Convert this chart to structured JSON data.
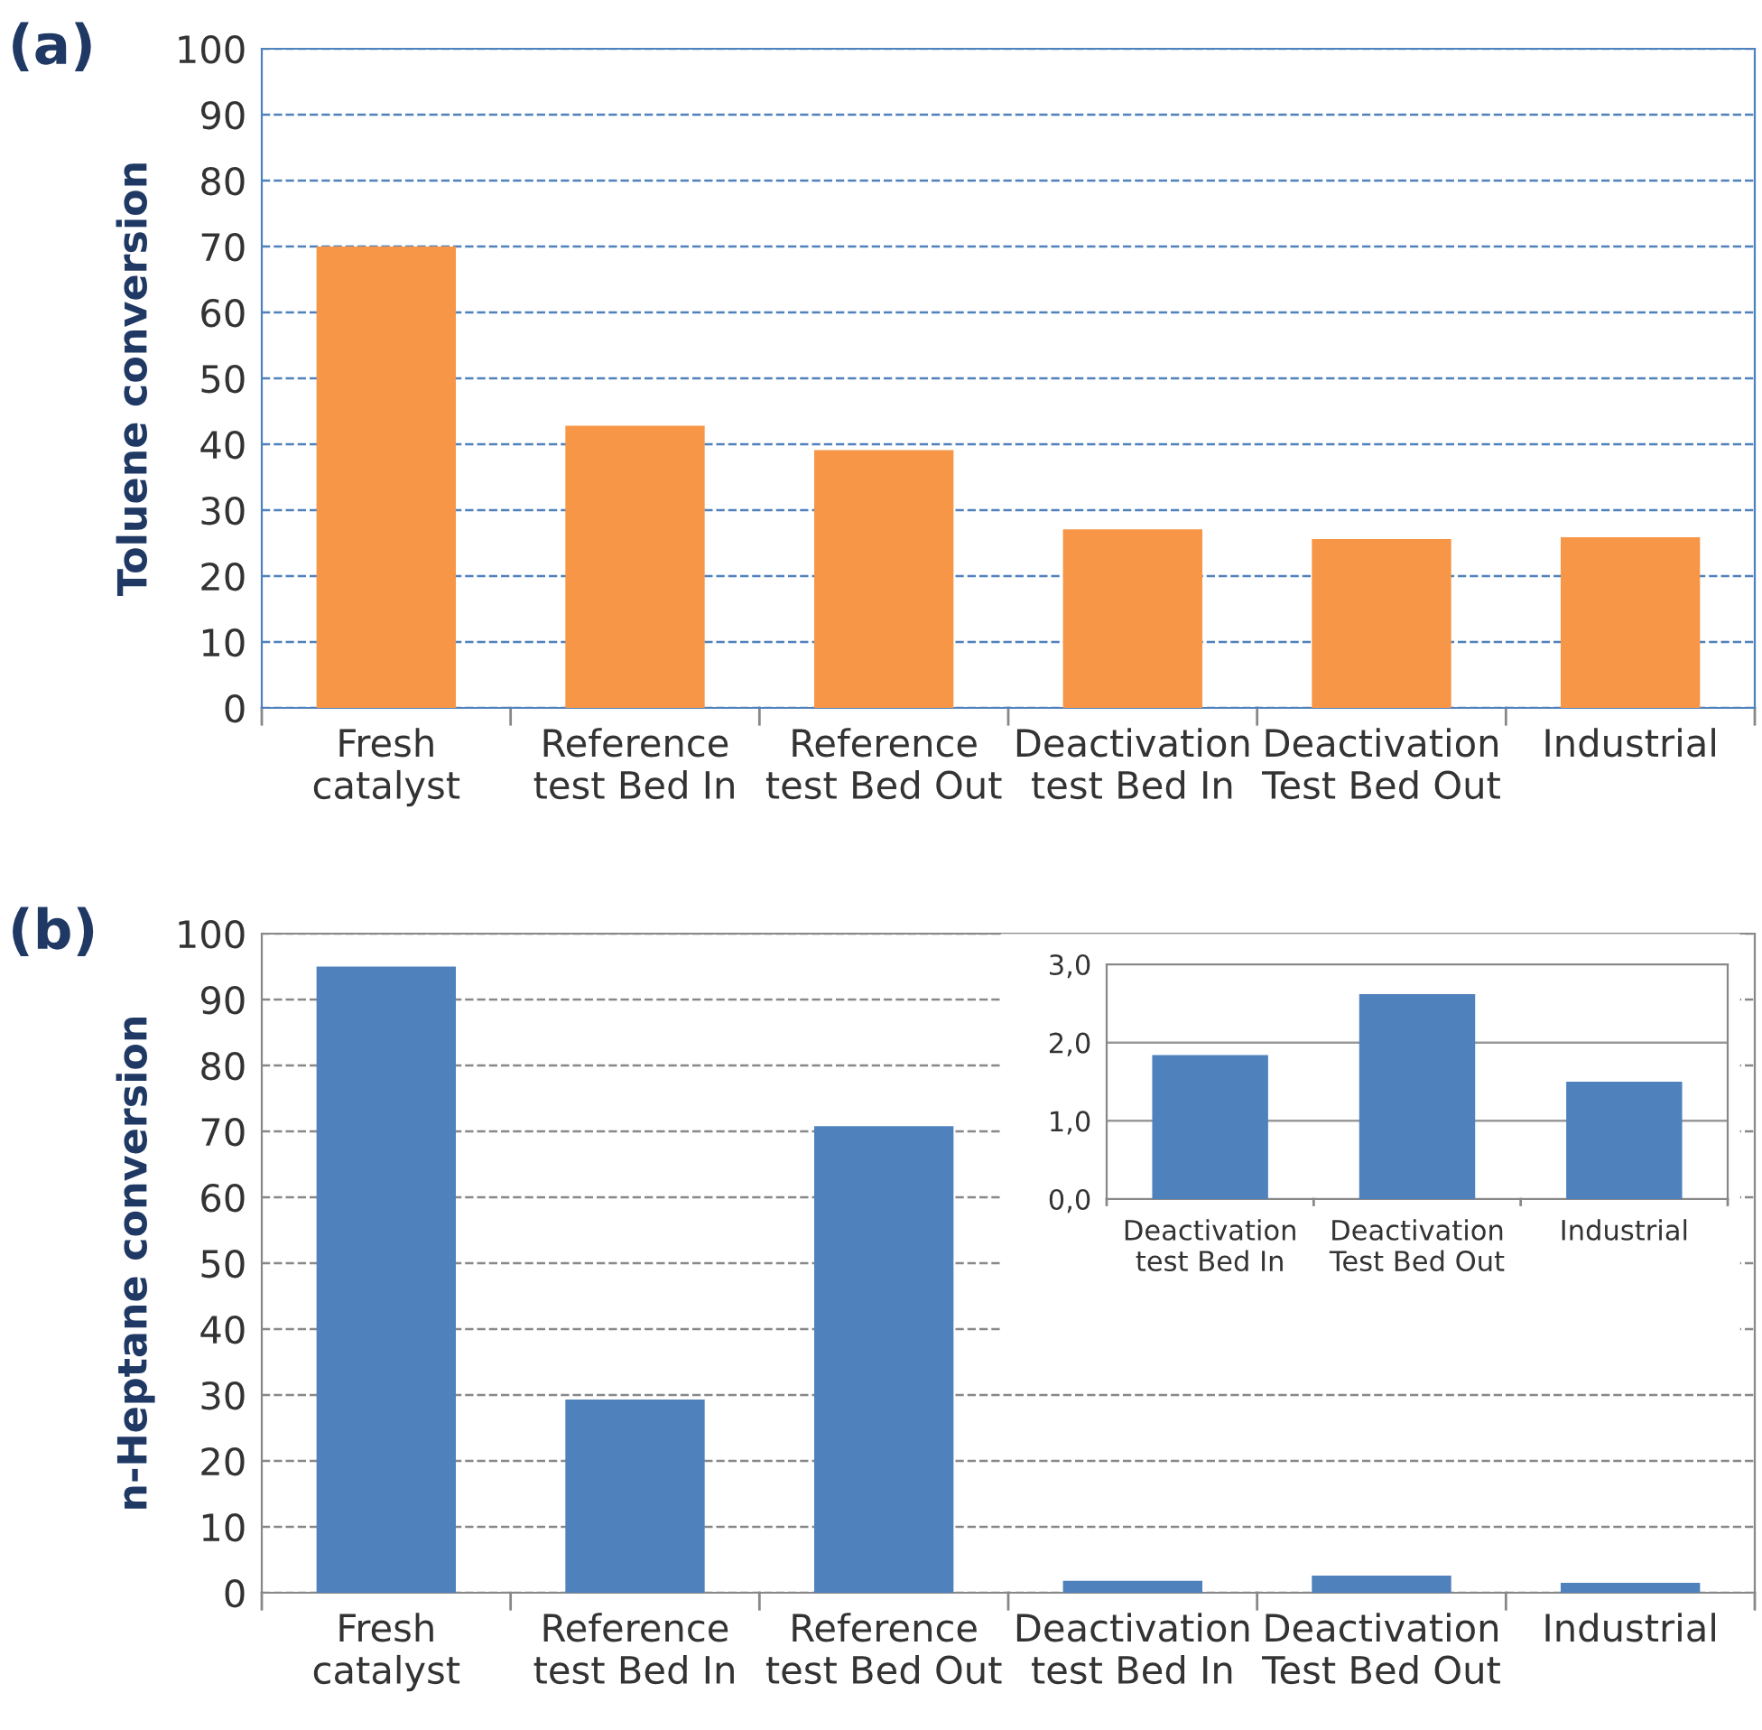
{
  "chart_data": [
    {
      "type": "bar",
      "title": "(a)",
      "ylabel": "Toluene conversion",
      "categories": [
        "Fresh\ncatalyst",
        "Reference\ntest Bed In",
        "Reference\ntest Bed Out",
        "Deactivation\ntest Bed In",
        "Deactivation\nTest Bed Out",
        "Industrial"
      ],
      "values": [
        70,
        42.8,
        39.1,
        27.1,
        25.6,
        25.9
      ],
      "color": "#f79646",
      "ylim": [
        0,
        100
      ],
      "yticks": [
        0,
        10,
        20,
        30,
        40,
        50,
        60,
        70,
        80,
        90,
        100
      ],
      "grid": "y"
    },
    {
      "type": "bar",
      "title": "(b)",
      "ylabel": "n-Heptane conversion",
      "categories": [
        "Fresh\ncatalyst",
        "Reference\ntest Bed In",
        "Reference\ntest Bed Out",
        "Deactivation\ntest Bed In",
        "Deactivation\nTest Bed Out",
        "Industrial"
      ],
      "values": [
        95,
        29.3,
        70.8,
        1.8,
        2.6,
        1.5
      ],
      "color": "#4f81bd",
      "ylim": [
        0,
        100
      ],
      "yticks": [
        0,
        10,
        20,
        30,
        40,
        50,
        60,
        70,
        80,
        90,
        100
      ],
      "grid": "y"
    },
    {
      "type": "bar",
      "categories": [
        "Deactivation\ntest Bed In",
        "Deactivation\nTest Bed Out",
        "Industrial"
      ],
      "values": [
        1.84,
        2.62,
        1.5
      ],
      "color": "#4f81bd",
      "ylim": [
        0,
        3
      ],
      "yticks": [
        {
          "value": 0,
          "label": "0,0"
        },
        {
          "value": 1,
          "label": "1,0"
        },
        {
          "value": 2,
          "label": "2,0"
        },
        {
          "value": 3,
          "label": "3,0"
        }
      ],
      "grid": "y"
    }
  ]
}
